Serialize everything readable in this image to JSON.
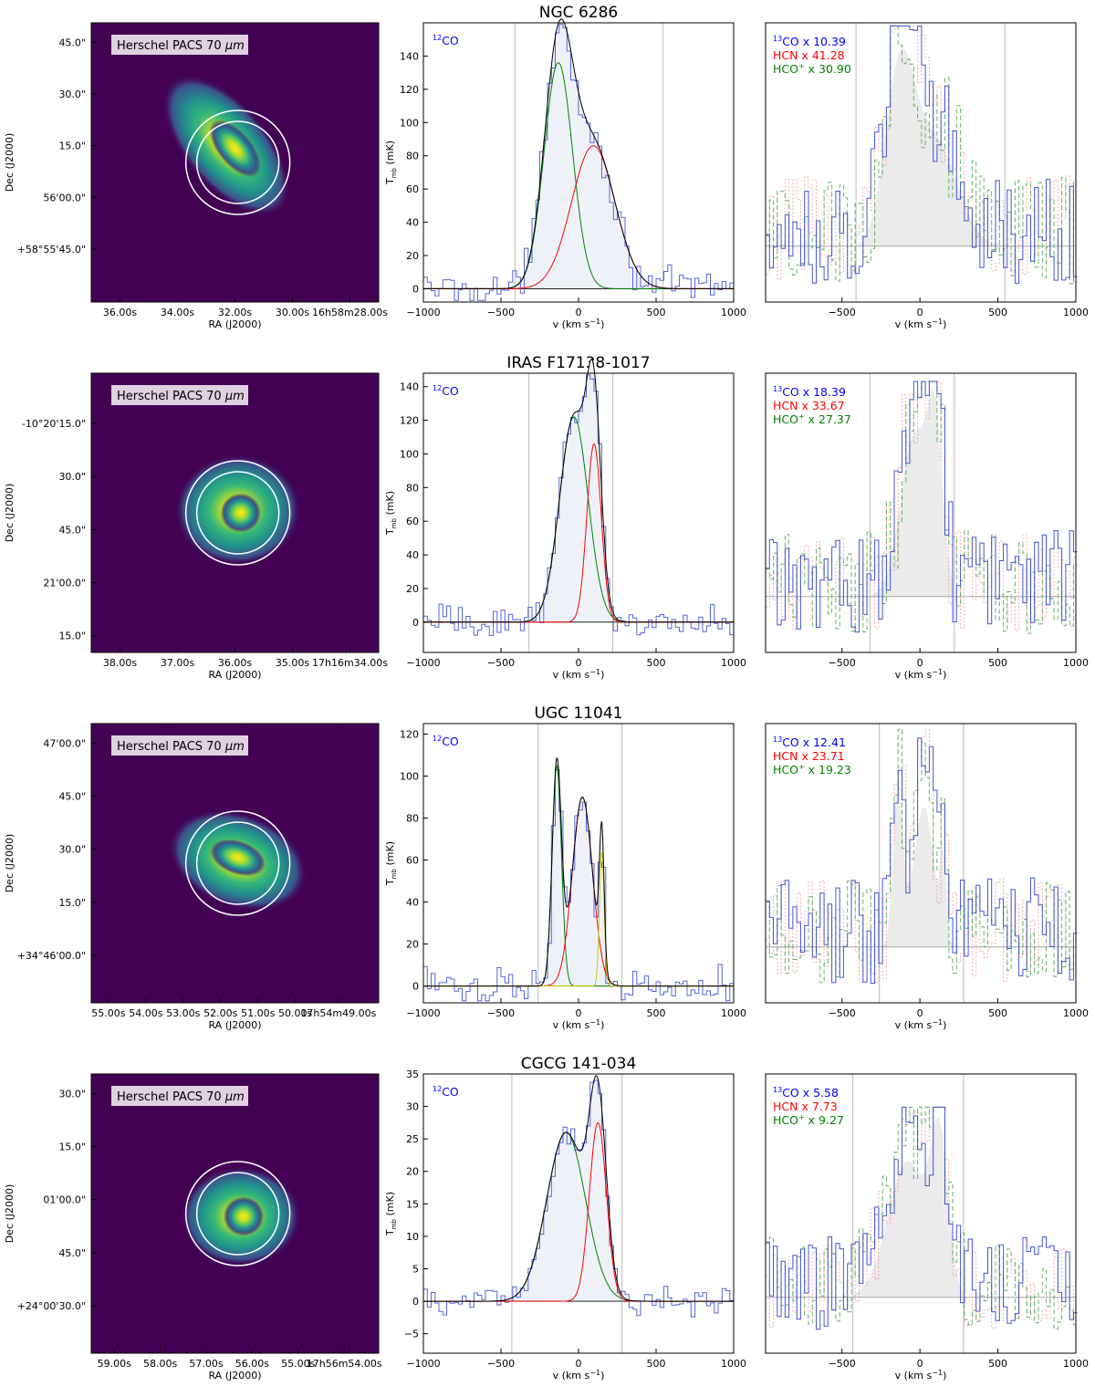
{
  "colors": {
    "co12": "#5566dd",
    "co13": "#3344cc",
    "hcn": "#ee8888",
    "hcop": "#55aa55",
    "fill12": "#eef2f8",
    "fillgrey": "#dddddd",
    "g1": "#008000",
    "g2": "#ff0000",
    "g3": "#cccc00",
    "total": "#000000",
    "bg": "#440154"
  },
  "labels": {
    "ra": "RA (J2000)",
    "dec": "Dec (J2000)",
    "vel": "v (km s",
    "vel_sup": "−1",
    "vel_close": ")",
    "tmb": "T",
    "tmb_sub": "mb",
    "tmb_unit": " (mK)",
    "pacs": "Herschel PACS 70 ",
    "pacs_mu": "μm",
    "co12": "CO",
    "co12_sup": "12",
    "co13_sup": "13",
    "co13": "CO x ",
    "hcn": "HCN  x ",
    "hcop": "HCO",
    "hcop_sup": "+",
    "hcop_x": " x "
  },
  "chart_data": [
    {
      "type": "line",
      "title": "NGC 6286",
      "image": {
        "ra_ticks": [
          "36.00s",
          "34.00s",
          "32.00s",
          "30.00s",
          "16h58m28.00s"
        ],
        "dec_ticks": [
          "45.0\"",
          "30.0\"",
          "15.0\"",
          "56'00.0\"",
          "+58°55'45.0\""
        ]
      },
      "co12": {
        "xlim": [
          -1000,
          1000
        ],
        "ylim": [
          -8,
          160
        ],
        "yticks": [
          0,
          20,
          40,
          60,
          80,
          100,
          120,
          140
        ],
        "vlines": [
          -410,
          545
        ],
        "gaussians": [
          {
            "amp": 136,
            "center": -130,
            "sigma": 92
          },
          {
            "amp": 86,
            "center": 95,
            "sigma": 140
          }
        ]
      },
      "ratios": {
        "co13": "10.39",
        "hcn": "41.28",
        "hcop": "30.90"
      },
      "ratio_panel": {
        "xlim": [
          -990,
          1000
        ],
        "vlines": [
          -410,
          545
        ],
        "ymax_frac": 0.88
      }
    },
    {
      "type": "line",
      "title": "IRAS F17138-1017",
      "image": {
        "ra_ticks": [
          "38.00s",
          "37.00s",
          "36.00s",
          "35.00s",
          "17h16m34.00s"
        ],
        "dec_ticks": [
          "-10°20'15.0\"",
          "30.0\"",
          "45.0\"",
          "21'00.0\"",
          "15.0\""
        ]
      },
      "co12": {
        "xlim": [
          -1000,
          1000
        ],
        "ylim": [
          -18,
          148
        ],
        "yticks": [
          0,
          20,
          40,
          60,
          80,
          100,
          120,
          140
        ],
        "vlines": [
          -320,
          220
        ],
        "gaussians": [
          {
            "amp": 122,
            "center": -30,
            "sigma": 92
          },
          {
            "amp": 106,
            "center": 100,
            "sigma": 46
          }
        ]
      },
      "ratios": {
        "co13": "18.39",
        "hcn": "33.67",
        "hcop": "27.37"
      },
      "ratio_panel": {
        "xlim": [
          -990,
          1000
        ],
        "vlines": [
          -320,
          220
        ],
        "ymax_frac": 0.86
      }
    },
    {
      "type": "line",
      "title": "UGC 11041",
      "image": {
        "ra_ticks": [
          "55.00s",
          "54.00s",
          "53.00s",
          "52.00s",
          "51.00s",
          "50.00s",
          "17h54m49.00s"
        ],
        "dec_ticks": [
          "47'00.0\"",
          "45.0\"",
          "30.0\"",
          "15.0\"",
          "+34°46'00.0\""
        ]
      },
      "co12": {
        "xlim": [
          -1000,
          1000
        ],
        "ylim": [
          -8,
          125
        ],
        "yticks": [
          0,
          20,
          40,
          60,
          80,
          100,
          120
        ],
        "vlines": [
          -260,
          280
        ],
        "gaussians": [
          {
            "amp": 105,
            "center": -140,
            "sigma": 30
          },
          {
            "amp": 90,
            "center": 25,
            "sigma": 65
          },
          {
            "amp": 64,
            "center": 150,
            "sigma": 15
          }
        ]
      },
      "ratios": {
        "co13": "12.41",
        "hcn": "23.71",
        "hcop": "19.23"
      },
      "ratio_panel": {
        "xlim": [
          -990,
          1000
        ],
        "vlines": [
          -260,
          280
        ],
        "ymax_frac": 0.87
      }
    },
    {
      "type": "line",
      "title": "CGCG 141-034",
      "image": {
        "ra_ticks": [
          "59.00s",
          "58.00s",
          "57.00s",
          "56.00s",
          "55.00s",
          "17h56m54.00s"
        ],
        "dec_ticks": [
          "30.0\"",
          "15.0\"",
          "01'00.0\"",
          "45.0\"",
          "+24°00'30.0\""
        ]
      },
      "co12": {
        "xlim": [
          -1000,
          1000
        ],
        "ylim": [
          -8,
          35
        ],
        "yticks": [
          -5,
          0,
          5,
          10,
          15,
          20,
          25,
          30,
          35
        ],
        "vlines": [
          -430,
          280
        ],
        "gaussians": [
          {
            "amp": 26,
            "center": -80,
            "sigma": 125
          },
          {
            "amp": 27.5,
            "center": 125,
            "sigma": 55
          }
        ]
      },
      "ratios": {
        "co13": "5.58",
        "hcn": "7.73",
        "hcop": "9.27"
      },
      "ratio_panel": {
        "xlim": [
          -990,
          1000
        ],
        "vlines": [
          -430,
          280
        ],
        "ymax_frac": 0.76
      }
    }
  ],
  "xticks": [
    -1000,
    -500,
    0,
    500,
    1000
  ],
  "ratio_xticks": [
    -500,
    0,
    500,
    1000
  ]
}
